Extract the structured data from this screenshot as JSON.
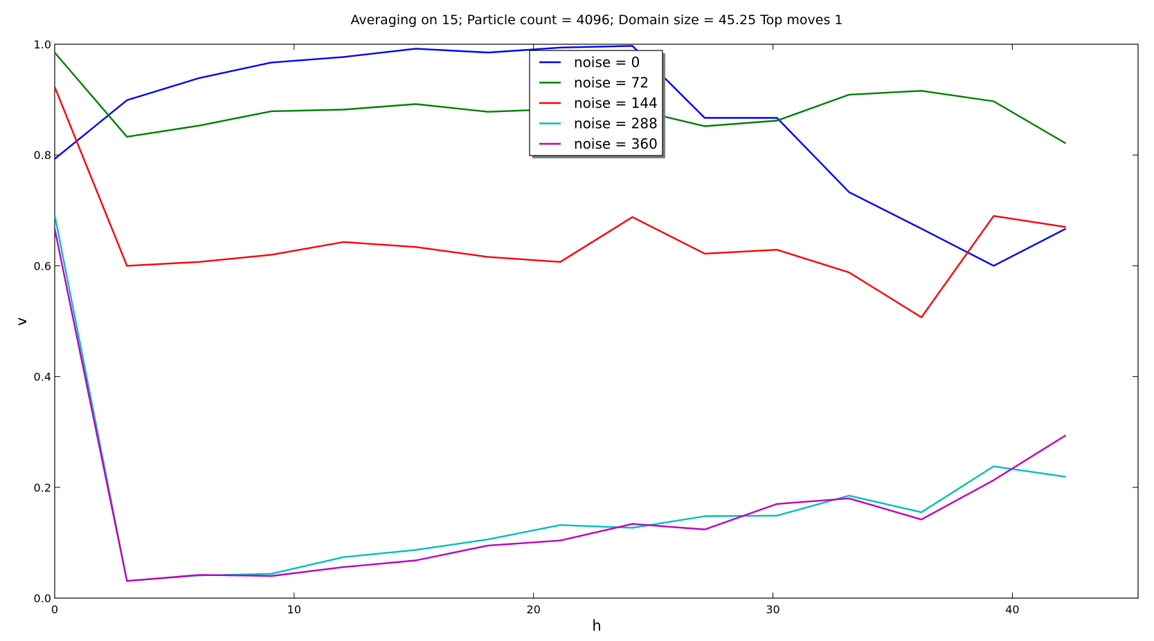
{
  "chart_data": {
    "type": "line",
    "title": "Averaging on 15; Particle count = 4096; Domain size = 45.25 Top moves 1",
    "xlabel": "h",
    "ylabel": "v",
    "xlim": [
      0,
      45.25
    ],
    "ylim": [
      0,
      1.0
    ],
    "xticks": [
      0,
      10,
      20,
      30,
      40
    ],
    "yticks": [
      0.0,
      0.2,
      0.4,
      0.6,
      0.8,
      1.0
    ],
    "xtick_labels": [
      "0",
      "10",
      "20",
      "30",
      "40"
    ],
    "ytick_labels": [
      "0.0",
      "0.2",
      "0.4",
      "0.6",
      "0.8",
      "1.0"
    ],
    "grid": false,
    "legend_position": "top-center",
    "x": [
      0,
      3.02,
      6.03,
      9.05,
      12.07,
      15.08,
      18.1,
      21.12,
      24.13,
      27.15,
      30.17,
      33.18,
      36.2,
      39.22,
      42.23
    ],
    "series": [
      {
        "name": "noise = 0",
        "color": "#0000ff",
        "values": [
          0.793,
          0.899,
          0.939,
          0.967,
          0.977,
          0.992,
          0.985,
          0.994,
          0.997,
          0.867,
          0.867,
          0.733,
          0.667,
          0.6,
          0.667
        ]
      },
      {
        "name": "noise = 72",
        "color": "#008000",
        "values": [
          0.985,
          0.833,
          0.853,
          0.879,
          0.882,
          0.892,
          0.878,
          0.883,
          0.883,
          0.852,
          0.862,
          0.909,
          0.916,
          0.897,
          0.821
        ]
      },
      {
        "name": "noise = 144",
        "color": "#ff0000",
        "values": [
          0.923,
          0.6,
          0.607,
          0.62,
          0.643,
          0.634,
          0.616,
          0.607,
          0.688,
          0.622,
          0.629,
          0.588,
          0.507,
          0.69,
          0.67
        ]
      },
      {
        "name": "noise = 288",
        "color": "#00bfbf",
        "values": [
          0.692,
          0.031,
          0.041,
          0.044,
          0.074,
          0.087,
          0.106,
          0.132,
          0.127,
          0.148,
          0.149,
          0.185,
          0.155,
          0.238,
          0.219
        ]
      },
      {
        "name": "noise = 360",
        "color": "#bf00bf",
        "values": [
          0.667,
          0.031,
          0.042,
          0.04,
          0.056,
          0.068,
          0.095,
          0.104,
          0.134,
          0.124,
          0.17,
          0.18,
          0.142,
          0.213,
          0.294
        ]
      }
    ]
  }
}
